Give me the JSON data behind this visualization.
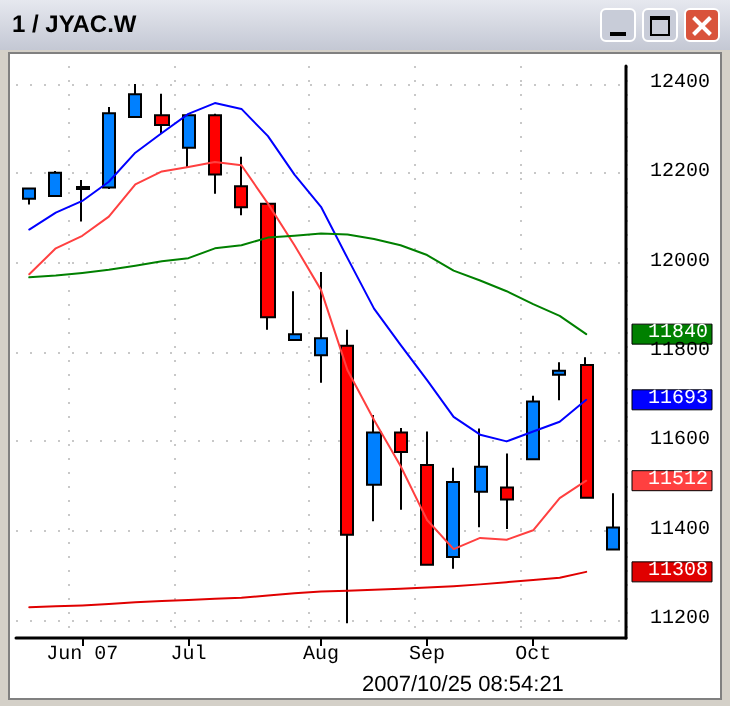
{
  "chart_data": {
    "type": "candlestick",
    "title": "1 / JYAC.W",
    "categories": [
      null,
      null,
      "Jun 07",
      null,
      null,
      null,
      "Jul",
      null,
      null,
      null,
      null,
      "Aug",
      null,
      null,
      null,
      "Sep",
      null,
      null,
      null,
      "Oct",
      null,
      null,
      null
    ],
    "ohlc": [
      [
        12143,
        12166,
        12130,
        12166
      ],
      [
        12149,
        12205,
        12149,
        12201
      ],
      [
        12169,
        12185,
        12092,
        12165
      ],
      [
        12168,
        12348,
        12165,
        12334
      ],
      [
        12326,
        12400,
        12326,
        12377
      ],
      [
        12330,
        12378,
        12290,
        12308
      ],
      [
        12257,
        12330,
        12214,
        12330
      ],
      [
        12330,
        12333,
        12154,
        12197
      ],
      [
        12171,
        12237,
        12106,
        12124
      ],
      [
        12132,
        12132,
        11850,
        11878
      ],
      [
        11827,
        11936,
        11827,
        11840
      ],
      [
        11793,
        11979,
        11731,
        11831
      ],
      [
        11814,
        11850,
        11193,
        11391
      ],
      [
        11503,
        11659,
        11421,
        11620
      ],
      [
        11620,
        11630,
        11447,
        11576
      ],
      [
        11547,
        11622,
        11324,
        11324
      ],
      [
        11341,
        11541,
        11315,
        11509
      ],
      [
        11487,
        11629,
        11408,
        11543
      ],
      [
        11497,
        11573,
        11404,
        11470
      ],
      [
        11560,
        11702,
        11560,
        11689
      ],
      [
        11749,
        11777,
        11692,
        11758
      ],
      [
        11771,
        11788,
        11474,
        11474
      ],
      [
        11358,
        11484,
        11358,
        11407
      ]
    ],
    "colors": [
      "#0080ff",
      "#0080ff",
      "#ff0000",
      "#0080ff",
      "#0080ff",
      "#ff0000",
      "#0080ff",
      "#ff0000",
      "#ff0000",
      "#ff0000",
      "#0080ff",
      "#0080ff",
      "#ff0000",
      "#0080ff",
      "#ff0000",
      "#ff0000",
      "#0080ff",
      "#0080ff",
      "#ff0000",
      "#0080ff",
      "#0080ff",
      "#ff0000",
      "#0080ff"
    ],
    "series": [
      {
        "type": "line",
        "color": "#0000ff",
        "values": [
          12074,
          12112,
          12138,
          12181,
          12246,
          12290,
          12333,
          12357,
          12344,
          12283,
          12197,
          12125,
          12010,
          11897,
          11816,
          11737,
          11655,
          11615,
          11600,
          11622,
          11644,
          11693,
          null
        ]
      },
      {
        "type": "line",
        "color": "#ff4040",
        "values": [
          11974,
          12032,
          12060,
          12103,
          12175,
          12204,
          12214,
          12225,
          12218,
          12132,
          12039,
          11939,
          11759,
          11648,
          11545,
          11424,
          11359,
          11384,
          11380,
          11401,
          11473,
          11512,
          null
        ]
      },
      {
        "type": "line",
        "color": "#008000",
        "values": [
          11967,
          11971,
          11977,
          11984,
          11993,
          12003,
          12010,
          12032,
          12039,
          12056,
          12060,
          12065,
          12063,
          12053,
          12039,
          12017,
          11982,
          11960,
          11936,
          11907,
          11881,
          11840,
          null
        ]
      },
      {
        "type": "line",
        "color": "#e00000",
        "values": [
          11229,
          11231,
          11233,
          11236,
          11240,
          11243,
          11245,
          11248,
          11250,
          11255,
          11260,
          11264,
          11266,
          11268,
          11270,
          11273,
          11276,
          11280,
          11285,
          11290,
          11295,
          11308,
          null
        ]
      }
    ],
    "ylim": [
      11160,
      12440
    ],
    "yticks": [
      11200,
      11400,
      11600,
      11800,
      12000,
      12200,
      12400
    ],
    "grid": true,
    "marker": "none",
    "line_style": "solid",
    "annotations": [
      "2007/10/25 08:54:21",
      "11693",
      "11512",
      "11840",
      "11308"
    ]
  }
}
